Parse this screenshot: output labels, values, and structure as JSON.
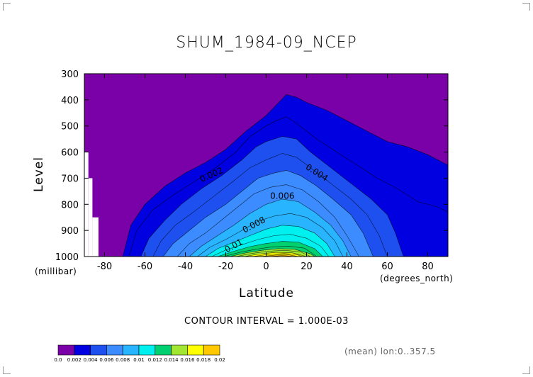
{
  "chart_data": {
    "type": "heatmap",
    "title": "SHUM_1984-09_NCEP",
    "xlabel": "Latitude",
    "xunit": "(degrees_north)",
    "ylabel": "Level",
    "yunit": "(millibar)",
    "xlim": [
      -90,
      90
    ],
    "ylim": [
      1000,
      300
    ],
    "xticks": [
      "-80",
      "-60",
      "-40",
      "-20",
      "0",
      "20",
      "40",
      "60",
      "80"
    ],
    "xtick_values": [
      -80,
      -60,
      -40,
      -20,
      0,
      20,
      40,
      60,
      80
    ],
    "yticks": [
      "300",
      "400",
      "500",
      "600",
      "700",
      "800",
      "900",
      "1000"
    ],
    "ytick_values": [
      300,
      400,
      500,
      600,
      700,
      800,
      900,
      1000
    ],
    "contour_interval_text": "CONTOUR INTERVAL = 1.000E-03",
    "stat_note": "(mean) lon:0..357.5",
    "colorbar": {
      "labels": [
        "0.0",
        "0.002",
        "0.004",
        "0.006",
        "0.008",
        "0.01",
        "0.012",
        "0.014",
        "0.016",
        "0.018",
        "0.02"
      ],
      "colors": [
        "#7a00a8",
        "#0000e0",
        "#1e50f0",
        "#3c8cff",
        "#28b4ff",
        "#00f0f0",
        "#00d070",
        "#a0e632",
        "#ffff00",
        "#ffc800",
        "#ff8c00",
        "#ff5000",
        "#ff0000"
      ]
    },
    "level_colors": [
      "#7a00a8",
      "#0000e0",
      "#0000e0",
      "#1e50f0",
      "#1e50f0",
      "#3c8cff",
      "#3c8cff",
      "#28b4ff",
      "#28b4ff",
      "#00f0f0",
      "#00f0f0",
      "#00d070",
      "#00d070",
      "#a0e632",
      "#a0e632",
      "#ffff00",
      "#ffff00",
      "#ffc800",
      "#ffc800",
      "#ff8c00",
      "#ff8c00",
      "#ff5000",
      "#ff5000"
    ],
    "contours": [
      {
        "level": 0.001,
        "pts": [
          [
            -71,
            1000
          ],
          [
            -67,
            880
          ],
          [
            -60,
            800
          ],
          [
            -50,
            730
          ],
          [
            -40,
            680
          ],
          [
            -30,
            640
          ],
          [
            -20,
            590
          ],
          [
            -10,
            520
          ],
          [
            0,
            460
          ],
          [
            5,
            420
          ],
          [
            10,
            380
          ],
          [
            15,
            390
          ],
          [
            20,
            410
          ],
          [
            30,
            440
          ],
          [
            40,
            480
          ],
          [
            50,
            520
          ],
          [
            60,
            560
          ],
          [
            70,
            580
          ],
          [
            80,
            610
          ],
          [
            90,
            650
          ]
        ]
      },
      {
        "level": 0.002,
        "pts": [
          [
            -68,
            1000
          ],
          [
            -64,
            900
          ],
          [
            -56,
            820
          ],
          [
            -45,
            760
          ],
          [
            -35,
            710
          ],
          [
            -25,
            660
          ],
          [
            -15,
            600
          ],
          [
            -8,
            540
          ],
          [
            0,
            500
          ],
          [
            5,
            480
          ],
          [
            10,
            465
          ],
          [
            15,
            490
          ],
          [
            25,
            550
          ],
          [
            35,
            600
          ],
          [
            45,
            650
          ],
          [
            55,
            700
          ],
          [
            65,
            740
          ],
          [
            75,
            790
          ],
          [
            85,
            810
          ],
          [
            90,
            830
          ]
        ]
      },
      {
        "level": 0.003,
        "pts": [
          [
            -62,
            1000
          ],
          [
            -58,
            930
          ],
          [
            -50,
            860
          ],
          [
            -42,
            800
          ],
          [
            -32,
            740
          ],
          [
            -22,
            690
          ],
          [
            -12,
            630
          ],
          [
            -5,
            580
          ],
          [
            0,
            560
          ],
          [
            8,
            540
          ],
          [
            15,
            550
          ],
          [
            22,
            600
          ],
          [
            32,
            660
          ],
          [
            42,
            720
          ],
          [
            52,
            780
          ],
          [
            60,
            840
          ],
          [
            64,
            910
          ],
          [
            68,
            1000
          ]
        ]
      },
      {
        "level": 0.004,
        "pts": [
          [
            -56,
            1000
          ],
          [
            -52,
            940
          ],
          [
            -45,
            880
          ],
          [
            -36,
            830
          ],
          [
            -26,
            770
          ],
          [
            -16,
            710
          ],
          [
            -8,
            660
          ],
          [
            0,
            630
          ],
          [
            8,
            605
          ],
          [
            15,
            620
          ],
          [
            22,
            660
          ],
          [
            32,
            720
          ],
          [
            42,
            780
          ],
          [
            50,
            840
          ],
          [
            56,
            920
          ],
          [
            60,
            1000
          ]
        ]
      },
      {
        "level": 0.005,
        "pts": [
          [
            -51,
            1000
          ],
          [
            -46,
            950
          ],
          [
            -38,
            900
          ],
          [
            -30,
            850
          ],
          [
            -20,
            800
          ],
          [
            -12,
            750
          ],
          [
            -4,
            700
          ],
          [
            4,
            680
          ],
          [
            10,
            670
          ],
          [
            17,
            690
          ],
          [
            25,
            730
          ],
          [
            33,
            780
          ],
          [
            42,
            840
          ],
          [
            48,
            910
          ],
          [
            53,
            1000
          ]
        ]
      },
      {
        "level": 0.006,
        "pts": [
          [
            -44,
            1000
          ],
          [
            -38,
            950
          ],
          [
            -30,
            910
          ],
          [
            -22,
            860
          ],
          [
            -14,
            810
          ],
          [
            -6,
            760
          ],
          [
            2,
            735
          ],
          [
            10,
            725
          ],
          [
            18,
            745
          ],
          [
            26,
            790
          ],
          [
            34,
            850
          ],
          [
            40,
            920
          ],
          [
            46,
            1000
          ]
        ]
      },
      {
        "level": 0.007,
        "pts": [
          [
            -38,
            1000
          ],
          [
            -32,
            960
          ],
          [
            -24,
            920
          ],
          [
            -16,
            880
          ],
          [
            -8,
            835
          ],
          [
            0,
            800
          ],
          [
            8,
            780
          ],
          [
            16,
            790
          ],
          [
            24,
            830
          ],
          [
            32,
            880
          ],
          [
            38,
            940
          ],
          [
            42,
            1000
          ]
        ]
      },
      {
        "level": 0.008,
        "pts": [
          [
            -34,
            1000
          ],
          [
            -28,
            965
          ],
          [
            -20,
            935
          ],
          [
            -12,
            900
          ],
          [
            -4,
            865
          ],
          [
            4,
            845
          ],
          [
            12,
            835
          ],
          [
            20,
            850
          ],
          [
            28,
            890
          ],
          [
            34,
            940
          ],
          [
            38,
            1000
          ]
        ]
      },
      {
        "level": 0.009,
        "pts": [
          [
            -30,
            1000
          ],
          [
            -24,
            970
          ],
          [
            -16,
            945
          ],
          [
            -8,
            920
          ],
          [
            0,
            895
          ],
          [
            8,
            880
          ],
          [
            16,
            885
          ],
          [
            24,
            910
          ],
          [
            30,
            950
          ],
          [
            34,
            1000
          ]
        ]
      },
      {
        "level": 0.01,
        "pts": [
          [
            -27,
            1000
          ],
          [
            -20,
            975
          ],
          [
            -12,
            955
          ],
          [
            -4,
            935
          ],
          [
            4,
            920
          ],
          [
            12,
            915
          ],
          [
            20,
            930
          ],
          [
            27,
            960
          ],
          [
            31,
            1000
          ]
        ]
      },
      {
        "level": 0.011,
        "pts": [
          [
            -24,
            1000
          ],
          [
            -16,
            980
          ],
          [
            -8,
            962
          ],
          [
            0,
            950
          ],
          [
            8,
            942
          ],
          [
            16,
            945
          ],
          [
            24,
            970
          ],
          [
            28,
            1000
          ]
        ]
      },
      {
        "level": 0.012,
        "pts": [
          [
            -21,
            1000
          ],
          [
            -13,
            984
          ],
          [
            -5,
            972
          ],
          [
            3,
            963
          ],
          [
            11,
            960
          ],
          [
            19,
            968
          ],
          [
            25,
            1000
          ]
        ]
      },
      {
        "level": 0.013,
        "pts": [
          [
            -18,
            1000
          ],
          [
            -10,
            986
          ],
          [
            -2,
            976
          ],
          [
            6,
            970
          ],
          [
            14,
            972
          ],
          [
            22,
            990
          ],
          [
            24,
            1000
          ]
        ]
      },
      {
        "level": 0.014,
        "pts": [
          [
            -15,
            1000
          ],
          [
            -7,
            988
          ],
          [
            1,
            980
          ],
          [
            9,
            976
          ],
          [
            17,
            982
          ],
          [
            22,
            1000
          ]
        ]
      },
      {
        "level": 0.015,
        "pts": [
          [
            -11,
            1000
          ],
          [
            -3,
            990
          ],
          [
            5,
            984
          ],
          [
            13,
            986
          ],
          [
            20,
            1000
          ]
        ]
      },
      {
        "level": 0.016,
        "pts": [
          [
            -7,
            1000
          ],
          [
            1,
            992
          ],
          [
            9,
            988
          ],
          [
            15,
            992
          ],
          [
            18,
            1000
          ]
        ]
      },
      {
        "level": 0.017,
        "pts": [
          [
            -3,
            1000
          ],
          [
            5,
            994
          ],
          [
            11,
            993
          ],
          [
            16,
            1000
          ]
        ]
      },
      {
        "level": 0.018,
        "pts": [
          [
            2,
            1000
          ],
          [
            8,
            996
          ],
          [
            14,
            1000
          ]
        ]
      }
    ],
    "contour_labels": [
      {
        "text": "0.002",
        "x": -27,
        "y": 688,
        "angle": -24
      },
      {
        "text": "0.004",
        "x": 25,
        "y": 680,
        "angle": 32
      },
      {
        "text": "0.006",
        "x": 8,
        "y": 770,
        "angle": 0
      },
      {
        "text": "0.008",
        "x": -6,
        "y": 880,
        "angle": -28
      },
      {
        "text": "0.01",
        "x": -16,
        "y": 960,
        "angle": -28
      }
    ],
    "missing_regions": [
      {
        "x": [
          -90,
          -88
        ],
        "y": [
          600,
          1000
        ]
      },
      {
        "x": [
          -88,
          -86
        ],
        "y": [
          700,
          1000
        ]
      },
      {
        "x": [
          -86,
          -83
        ],
        "y": [
          850,
          1000
        ]
      }
    ]
  }
}
